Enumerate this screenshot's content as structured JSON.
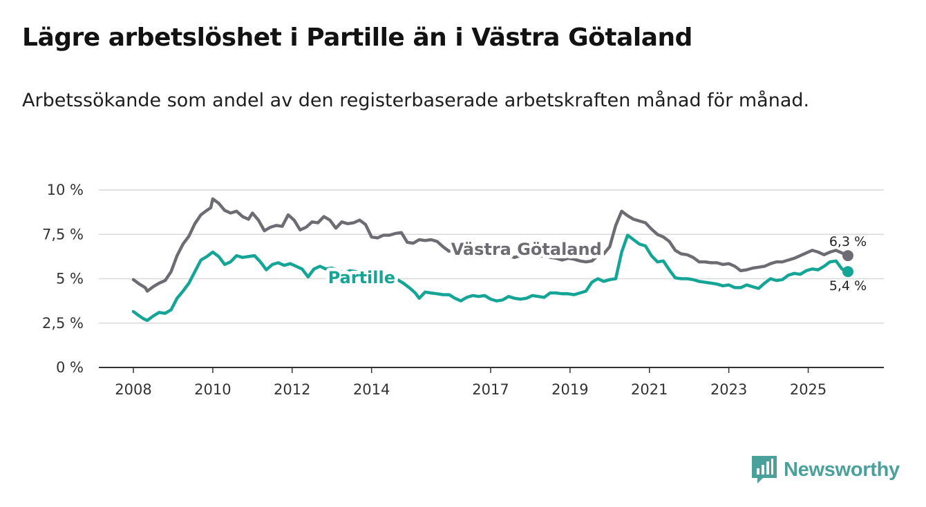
{
  "title": "Lägre arbetslöshet i Partille än i Västra Götaland",
  "subtitle": "Arbetssökande som andel av den registerbaserade arbetskraften månad för månad.",
  "brand": {
    "name": "Newsworthy",
    "icon": "bar-chart-logo-icon"
  },
  "colors": {
    "vg": "#6e6c73",
    "partille": "#14a596",
    "grid": "#d9d9d9",
    "axis": "#333333",
    "brand": "#4aa09b"
  },
  "chart_data": {
    "type": "line",
    "title": "Lägre arbetslöshet i Partille än i Västra Götaland",
    "xlabel": "",
    "ylabel": "",
    "xlim": [
      2008,
      2026.7
    ],
    "ylim": [
      0,
      10
    ],
    "grid": true,
    "x_ticks": [
      {
        "value": 2008,
        "label": "2008"
      },
      {
        "value": 2010,
        "label": "2010"
      },
      {
        "value": 2012,
        "label": "2012"
      },
      {
        "value": 2014,
        "label": "2014"
      },
      {
        "value": 2017,
        "label": "2017"
      },
      {
        "value": 2019,
        "label": "2019"
      },
      {
        "value": 2021,
        "label": "2021"
      },
      {
        "value": 2023,
        "label": "2023"
      },
      {
        "value": 2025,
        "label": "2025"
      }
    ],
    "y_ticks": [
      {
        "value": 0,
        "label": "0 %"
      },
      {
        "value": 2.5,
        "label": "2,5 %"
      },
      {
        "value": 5,
        "label": "5 %"
      },
      {
        "value": 7.5,
        "label": "7,5 %"
      },
      {
        "value": 10,
        "label": "10 %"
      }
    ],
    "series": [
      {
        "name": "Västra Götaland",
        "color": "#6e6c73",
        "end_label": "6,3 %",
        "points": [
          [
            2008.0,
            4.95
          ],
          [
            2008.15,
            4.7
          ],
          [
            2008.3,
            4.5
          ],
          [
            2008.35,
            4.3
          ],
          [
            2008.5,
            4.55
          ],
          [
            2008.65,
            4.75
          ],
          [
            2008.8,
            4.9
          ],
          [
            2008.95,
            5.4
          ],
          [
            2009.1,
            6.3
          ],
          [
            2009.25,
            6.95
          ],
          [
            2009.4,
            7.4
          ],
          [
            2009.55,
            8.1
          ],
          [
            2009.7,
            8.6
          ],
          [
            2009.85,
            8.85
          ],
          [
            2009.95,
            9.0
          ],
          [
            2010.0,
            9.5
          ],
          [
            2010.15,
            9.25
          ],
          [
            2010.3,
            8.85
          ],
          [
            2010.45,
            8.7
          ],
          [
            2010.6,
            8.8
          ],
          [
            2010.75,
            8.5
          ],
          [
            2010.9,
            8.35
          ],
          [
            2011.0,
            8.7
          ],
          [
            2011.15,
            8.3
          ],
          [
            2011.3,
            7.7
          ],
          [
            2011.45,
            7.9
          ],
          [
            2011.6,
            8.0
          ],
          [
            2011.75,
            7.95
          ],
          [
            2011.9,
            8.6
          ],
          [
            2012.05,
            8.3
          ],
          [
            2012.2,
            7.75
          ],
          [
            2012.35,
            7.9
          ],
          [
            2012.5,
            8.2
          ],
          [
            2012.65,
            8.15
          ],
          [
            2012.8,
            8.5
          ],
          [
            2012.95,
            8.3
          ],
          [
            2013.1,
            7.85
          ],
          [
            2013.25,
            8.2
          ],
          [
            2013.4,
            8.1
          ],
          [
            2013.55,
            8.15
          ],
          [
            2013.7,
            8.3
          ],
          [
            2013.85,
            8.05
          ],
          [
            2014.0,
            7.35
          ],
          [
            2014.15,
            7.3
          ],
          [
            2014.3,
            7.45
          ],
          [
            2014.45,
            7.45
          ],
          [
            2014.6,
            7.55
          ],
          [
            2014.75,
            7.6
          ],
          [
            2014.9,
            7.05
          ],
          [
            2015.05,
            7.0
          ],
          [
            2015.2,
            7.2
          ],
          [
            2015.35,
            7.15
          ],
          [
            2015.5,
            7.2
          ],
          [
            2015.65,
            7.1
          ],
          [
            2015.8,
            6.8
          ],
          [
            2015.95,
            6.55
          ],
          [
            2016.1,
            6.7
          ],
          [
            2016.25,
            6.85
          ],
          [
            2016.4,
            6.9
          ],
          [
            2016.55,
            6.95
          ],
          [
            2016.7,
            6.9
          ],
          [
            2016.85,
            6.55
          ],
          [
            2017.0,
            6.45
          ],
          [
            2017.15,
            6.5
          ],
          [
            2017.3,
            6.35
          ],
          [
            2017.45,
            6.3
          ],
          [
            2017.6,
            6.2
          ],
          [
            2017.75,
            6.3
          ],
          [
            2017.9,
            6.25
          ],
          [
            2018.05,
            6.35
          ],
          [
            2018.2,
            6.25
          ],
          [
            2018.35,
            6.3
          ],
          [
            2018.5,
            6.2
          ],
          [
            2018.65,
            6.15
          ],
          [
            2018.8,
            6.05
          ],
          [
            2018.95,
            6.15
          ],
          [
            2019.1,
            6.1
          ],
          [
            2019.25,
            6.0
          ],
          [
            2019.4,
            5.95
          ],
          [
            2019.55,
            6.0
          ],
          [
            2019.7,
            6.3
          ],
          [
            2019.85,
            6.4
          ],
          [
            2020.0,
            6.8
          ],
          [
            2020.15,
            8.0
          ],
          [
            2020.3,
            8.8
          ],
          [
            2020.45,
            8.55
          ],
          [
            2020.6,
            8.35
          ],
          [
            2020.75,
            8.25
          ],
          [
            2020.9,
            8.15
          ],
          [
            2021.05,
            7.8
          ],
          [
            2021.2,
            7.5
          ],
          [
            2021.35,
            7.35
          ],
          [
            2021.5,
            7.1
          ],
          [
            2021.65,
            6.6
          ],
          [
            2021.8,
            6.4
          ],
          [
            2021.95,
            6.35
          ],
          [
            2022.1,
            6.2
          ],
          [
            2022.25,
            5.95
          ],
          [
            2022.4,
            5.95
          ],
          [
            2022.55,
            5.9
          ],
          [
            2022.7,
            5.9
          ],
          [
            2022.85,
            5.8
          ],
          [
            2023.0,
            5.85
          ],
          [
            2023.15,
            5.7
          ],
          [
            2023.3,
            5.45
          ],
          [
            2023.45,
            5.5
          ],
          [
            2023.6,
            5.6
          ],
          [
            2023.75,
            5.65
          ],
          [
            2023.9,
            5.7
          ],
          [
            2024.05,
            5.85
          ],
          [
            2024.2,
            5.95
          ],
          [
            2024.35,
            5.95
          ],
          [
            2024.5,
            6.05
          ],
          [
            2024.65,
            6.15
          ],
          [
            2024.8,
            6.3
          ],
          [
            2024.95,
            6.45
          ],
          [
            2025.1,
            6.6
          ],
          [
            2025.25,
            6.5
          ],
          [
            2025.4,
            6.35
          ],
          [
            2025.55,
            6.5
          ],
          [
            2025.7,
            6.6
          ],
          [
            2025.85,
            6.45
          ],
          [
            2026.0,
            6.3
          ]
        ]
      },
      {
        "name": "Partille",
        "color": "#14a596",
        "end_label": "5,4 %",
        "points": [
          [
            2008.0,
            3.15
          ],
          [
            2008.12,
            2.95
          ],
          [
            2008.25,
            2.75
          ],
          [
            2008.35,
            2.65
          ],
          [
            2008.5,
            2.9
          ],
          [
            2008.65,
            3.1
          ],
          [
            2008.8,
            3.05
          ],
          [
            2008.95,
            3.25
          ],
          [
            2009.1,
            3.9
          ],
          [
            2009.25,
            4.3
          ],
          [
            2009.4,
            4.75
          ],
          [
            2009.55,
            5.4
          ],
          [
            2009.7,
            6.05
          ],
          [
            2009.85,
            6.25
          ],
          [
            2010.0,
            6.5
          ],
          [
            2010.15,
            6.25
          ],
          [
            2010.3,
            5.8
          ],
          [
            2010.45,
            5.95
          ],
          [
            2010.6,
            6.3
          ],
          [
            2010.75,
            6.2
          ],
          [
            2010.9,
            6.25
          ],
          [
            2011.05,
            6.3
          ],
          [
            2011.2,
            5.95
          ],
          [
            2011.35,
            5.5
          ],
          [
            2011.5,
            5.8
          ],
          [
            2011.65,
            5.9
          ],
          [
            2011.8,
            5.75
          ],
          [
            2011.95,
            5.85
          ],
          [
            2012.1,
            5.7
          ],
          [
            2012.25,
            5.55
          ],
          [
            2012.4,
            5.1
          ],
          [
            2012.55,
            5.55
          ],
          [
            2012.7,
            5.7
          ],
          [
            2012.85,
            5.55
          ],
          [
            2013.0,
            5.6
          ],
          [
            2013.15,
            5.5
          ],
          [
            2013.3,
            5.3
          ],
          [
            2013.45,
            5.45
          ],
          [
            2013.6,
            5.4
          ],
          [
            2013.75,
            5.3
          ],
          [
            2013.9,
            5.25
          ],
          [
            2014.05,
            5.0
          ],
          [
            2014.2,
            5.35
          ],
          [
            2014.35,
            5.25
          ],
          [
            2014.5,
            5.15
          ],
          [
            2014.65,
            4.95
          ],
          [
            2014.8,
            4.75
          ],
          [
            2014.95,
            4.5
          ],
          [
            2015.1,
            4.2
          ],
          [
            2015.2,
            3.9
          ],
          [
            2015.35,
            4.25
          ],
          [
            2015.5,
            4.2
          ],
          [
            2015.65,
            4.15
          ],
          [
            2015.8,
            4.1
          ],
          [
            2015.95,
            4.1
          ],
          [
            2016.1,
            3.9
          ],
          [
            2016.25,
            3.75
          ],
          [
            2016.4,
            3.95
          ],
          [
            2016.55,
            4.05
          ],
          [
            2016.7,
            4.0
          ],
          [
            2016.85,
            4.05
          ],
          [
            2017.0,
            3.85
          ],
          [
            2017.15,
            3.75
          ],
          [
            2017.3,
            3.8
          ],
          [
            2017.45,
            4.0
          ],
          [
            2017.6,
            3.9
          ],
          [
            2017.75,
            3.85
          ],
          [
            2017.9,
            3.9
          ],
          [
            2018.05,
            4.05
          ],
          [
            2018.2,
            4.0
          ],
          [
            2018.35,
            3.95
          ],
          [
            2018.5,
            4.2
          ],
          [
            2018.65,
            4.2
          ],
          [
            2018.8,
            4.15
          ],
          [
            2018.95,
            4.15
          ],
          [
            2019.1,
            4.1
          ],
          [
            2019.25,
            4.2
          ],
          [
            2019.4,
            4.3
          ],
          [
            2019.55,
            4.8
          ],
          [
            2019.7,
            5.0
          ],
          [
            2019.85,
            4.85
          ],
          [
            2020.0,
            4.95
          ],
          [
            2020.15,
            5.0
          ],
          [
            2020.3,
            6.5
          ],
          [
            2020.45,
            7.45
          ],
          [
            2020.6,
            7.2
          ],
          [
            2020.75,
            6.95
          ],
          [
            2020.9,
            6.85
          ],
          [
            2021.05,
            6.3
          ],
          [
            2021.2,
            5.95
          ],
          [
            2021.35,
            6.0
          ],
          [
            2021.5,
            5.5
          ],
          [
            2021.65,
            5.05
          ],
          [
            2021.8,
            5.0
          ],
          [
            2021.95,
            5.0
          ],
          [
            2022.1,
            4.95
          ],
          [
            2022.25,
            4.85
          ],
          [
            2022.4,
            4.8
          ],
          [
            2022.55,
            4.75
          ],
          [
            2022.7,
            4.7
          ],
          [
            2022.85,
            4.6
          ],
          [
            2023.0,
            4.65
          ],
          [
            2023.15,
            4.5
          ],
          [
            2023.3,
            4.5
          ],
          [
            2023.45,
            4.65
          ],
          [
            2023.6,
            4.55
          ],
          [
            2023.75,
            4.45
          ],
          [
            2023.9,
            4.75
          ],
          [
            2024.05,
            5.0
          ],
          [
            2024.2,
            4.9
          ],
          [
            2024.35,
            4.95
          ],
          [
            2024.5,
            5.2
          ],
          [
            2024.65,
            5.3
          ],
          [
            2024.8,
            5.25
          ],
          [
            2024.95,
            5.45
          ],
          [
            2025.1,
            5.55
          ],
          [
            2025.25,
            5.5
          ],
          [
            2025.4,
            5.7
          ],
          [
            2025.55,
            5.95
          ],
          [
            2025.7,
            6.0
          ],
          [
            2025.85,
            5.55
          ],
          [
            2026.0,
            5.4
          ]
        ]
      }
    ],
    "inline_labels": [
      {
        "series": "Västra Götaland",
        "text": "Västra Götaland",
        "at_x": 2017.9,
        "at_y": 6.7
      },
      {
        "series": "Partille",
        "text": "Partille",
        "at_x": 2013.75,
        "at_y": 5.1
      }
    ]
  }
}
